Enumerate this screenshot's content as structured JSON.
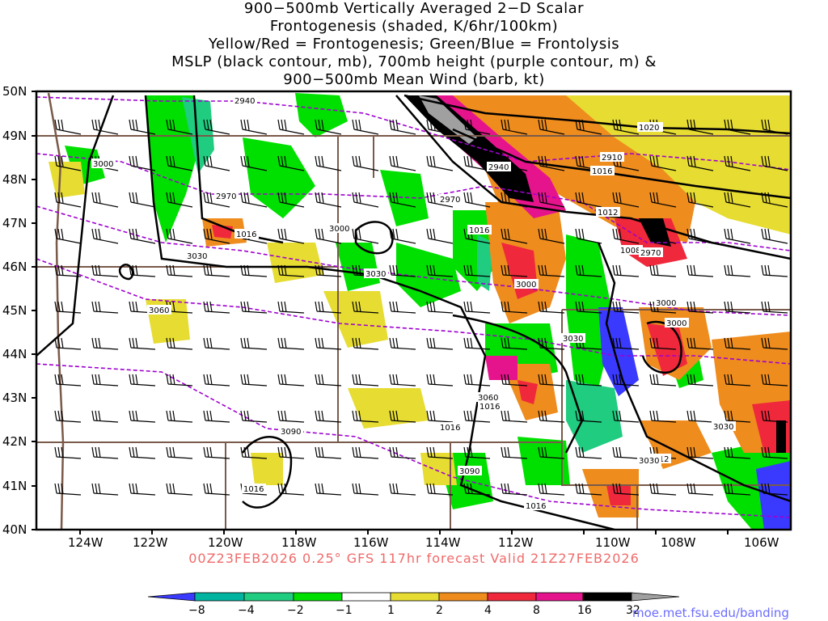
{
  "title_lines": [
    "900−500mb Vertically Averaged 2−D Scalar",
    "Frontogenesis (shaded, K/6hr/100km)",
    "Yellow/Red = Frontogenesis;  Green/Blue = Frontolysis",
    "MSLP (black contour, mb), 700mb height (purple contour, m) &",
    "900−500mb Mean Wind (barb, kt)"
  ],
  "lat_labels": [
    "50N",
    "49N",
    "48N",
    "47N",
    "46N",
    "45N",
    "44N",
    "43N",
    "42N",
    "41N",
    "40N"
  ],
  "lon_labels": [
    "124W",
    "122W",
    "120W",
    "118W",
    "116W",
    "114W",
    "112W",
    "110W",
    "108W",
    "106W"
  ],
  "footer": "00Z23FEB2026 0.25° GFS 117hr forecast Valid 21Z27FEB2026",
  "url": "moe.met.fsu.edu/banding",
  "colorbar": {
    "labels": [
      "−8",
      "−4",
      "−2",
      "−1",
      "1",
      "2",
      "4",
      "8",
      "16",
      "32"
    ],
    "colors": [
      "#3a3aff",
      "#00b4a0",
      "#20cc80",
      "#00e000",
      "#ffffff",
      "#e6dc32",
      "#ee8c1e",
      "#f0283c",
      "#e6148c",
      "#000000",
      "#a0a0a0"
    ]
  },
  "isobar_labels": [
    "1020",
    "1016",
    "1012",
    "1008",
    "1016",
    "1016",
    "1016",
    "1016",
    "1016",
    "1012",
    "1016"
  ],
  "height_labels": [
    "2940",
    "2910",
    "2940",
    "2970",
    "2970",
    "3000",
    "3000",
    "3000",
    "3030",
    "3030",
    "3030",
    "3060",
    "3060",
    "3090",
    "3090",
    "3000",
    "2970",
    "3030",
    "3000",
    "3030",
    "3060"
  ]
}
